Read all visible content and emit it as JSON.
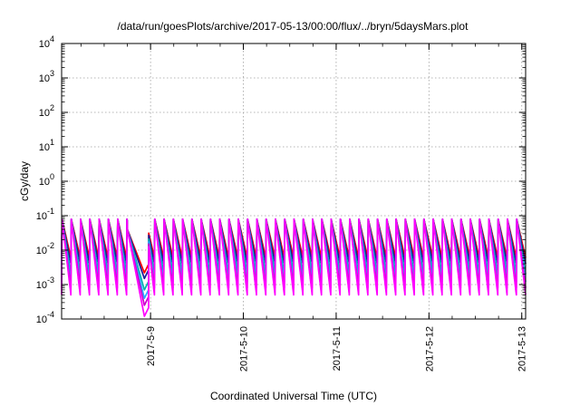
{
  "chart_data": {
    "type": "line",
    "title": "/data/run/goesPlots/archive/2017-05-13/00:00/flux/../bryn/5daysMars.plot",
    "xlabel": "Coordinated Universal Time (UTC)",
    "ylabel": "cGy/day",
    "x_range": [
      "2017-05-08T01:00",
      "2017-05-13T01:00"
    ],
    "x_ticks": [
      "2017-5-9",
      "2017-5-10",
      "2017-5-11",
      "2017-5-12",
      "2017-5-13"
    ],
    "y_scale": "log",
    "ylim": [
      0.0001,
      10000
    ],
    "y_ticks": [
      {
        "base": "10",
        "exp": "-4"
      },
      {
        "base": "10",
        "exp": "-3"
      },
      {
        "base": "10",
        "exp": "-2"
      },
      {
        "base": "10",
        "exp": "-1"
      },
      {
        "base": "10",
        "exp": "0"
      },
      {
        "base": "10",
        "exp": "1"
      },
      {
        "base": "10",
        "exp": "2"
      },
      {
        "base": "10",
        "exp": "3"
      },
      {
        "base": "10",
        "exp": "4"
      }
    ],
    "grid": true,
    "series_colors": [
      "#ff0000",
      "#1a1a99",
      "#00b0b0",
      "#2aa8ff",
      "#cc00cc",
      "#ff00ff"
    ],
    "cycle_hours": 2.4,
    "peak_value": 0.08,
    "trough_values": [
      0.006,
      0.004,
      0.002,
      0.0012,
      0.0008,
      0.0005
    ],
    "dip_window": [
      "2017-05-08T18:00",
      "2017-05-08T23:30"
    ],
    "dip_min_values": [
      0.0022,
      0.0015,
      0.0007,
      0.0004,
      0.00025,
      0.00012
    ]
  }
}
